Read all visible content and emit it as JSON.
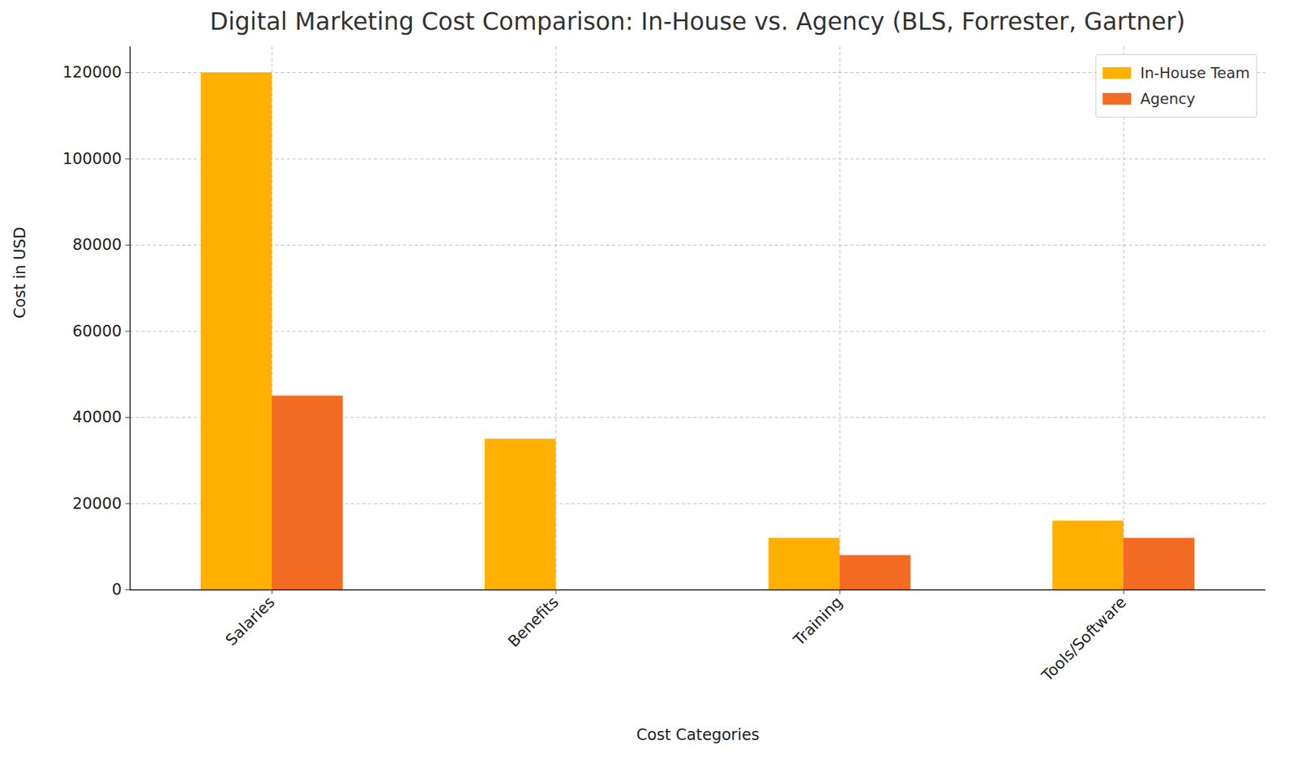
{
  "chart_data": {
    "type": "bar",
    "title": "Digital Marketing Cost Comparison: In-House vs. Agency (BLS, Forrester, Gartner)",
    "x_label": "Cost Categories",
    "y_label": "Cost in USD",
    "categories": [
      "Salaries",
      "Benefits",
      "Training",
      "Tools/Software"
    ],
    "series": [
      {
        "name": "In-House Team",
        "color": "#ffb000",
        "values": [
          120000,
          35000,
          12000,
          16000
        ]
      },
      {
        "name": "Agency",
        "color": "#f46b23",
        "values": [
          45000,
          0,
          8000,
          12000
        ]
      }
    ],
    "ylim": [
      0,
      126000
    ],
    "yticks": [
      0,
      20000,
      40000,
      60000,
      80000,
      100000,
      120000
    ],
    "grid": true,
    "legend": "upper right"
  }
}
